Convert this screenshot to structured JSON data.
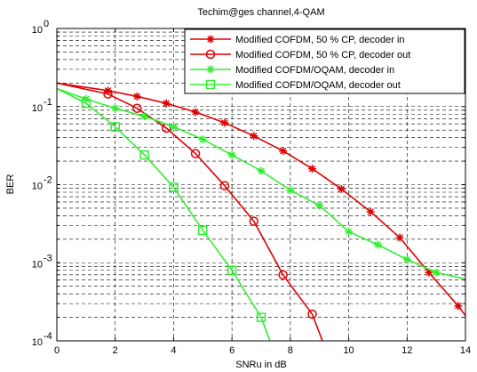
{
  "chart_data": {
    "type": "line",
    "title": "Techim@ges channel,4-QAM",
    "xlabel": "SNRu in dB",
    "ylabel": "BER",
    "xlim": [
      0,
      14
    ],
    "ylim": [
      0.0001,
      1
    ],
    "yscale": "log",
    "grid": true,
    "legend_position": "top-right",
    "x_ticks": [
      "0",
      "2",
      "4",
      "6",
      "8",
      "10",
      "12",
      "14"
    ],
    "y_ticks": [
      {
        "base": "10",
        "exp": "0",
        "value": 1
      },
      {
        "base": "10",
        "exp": "-1",
        "value": 0.1
      },
      {
        "base": "10",
        "exp": "-2",
        "value": 0.01
      },
      {
        "base": "10",
        "exp": "-3",
        "value": 0.001
      },
      {
        "base": "10",
        "exp": "-4",
        "value": 0.0001
      }
    ],
    "series": [
      {
        "name": "Modified COFDM, 50 % CP, decoder in",
        "color": "#e00000",
        "marker": "star",
        "x": [
          0,
          1.75,
          2.75,
          3.75,
          4.75,
          5.75,
          6.75,
          7.75,
          8.75,
          9.75,
          10.75,
          11.75,
          12.75,
          13.75,
          14
        ],
        "y": [
          0.2,
          0.16,
          0.135,
          0.11,
          0.085,
          0.062,
          0.042,
          0.027,
          0.016,
          0.0088,
          0.0045,
          0.0021,
          0.00075,
          0.00028,
          0.00021
        ]
      },
      {
        "name": "Modified COFDM, 50 % CP, decoder out",
        "color": "#e00000",
        "marker": "circle",
        "x": [
          0,
          1.75,
          2.75,
          3.75,
          4.75,
          5.75,
          6.75,
          7.75,
          8.75,
          9.1
        ],
        "y": [
          0.2,
          0.145,
          0.095,
          0.053,
          0.025,
          0.0097,
          0.0034,
          0.0007,
          0.00022,
          0.0001
        ]
      },
      {
        "name": "Modified COFDM/OQAM, decoder in",
        "color": "#33ee33",
        "marker": "star",
        "x": [
          0,
          1,
          2,
          3,
          4,
          5,
          6,
          7,
          8,
          9,
          10,
          11,
          12,
          13,
          14
        ],
        "y": [
          0.17,
          0.125,
          0.095,
          0.075,
          0.055,
          0.038,
          0.024,
          0.015,
          0.0085,
          0.0054,
          0.0025,
          0.0017,
          0.0011,
          0.00075,
          0.00062
        ]
      },
      {
        "name": "Modified COFDM/OQAM, decoder out",
        "color": "#33ee33",
        "marker": "square",
        "x": [
          0,
          1,
          2,
          3,
          4,
          5,
          6,
          7,
          7.3
        ],
        "y": [
          0.17,
          0.11,
          0.055,
          0.024,
          0.0093,
          0.0026,
          0.0008,
          0.0002,
          0.0001
        ]
      }
    ]
  }
}
